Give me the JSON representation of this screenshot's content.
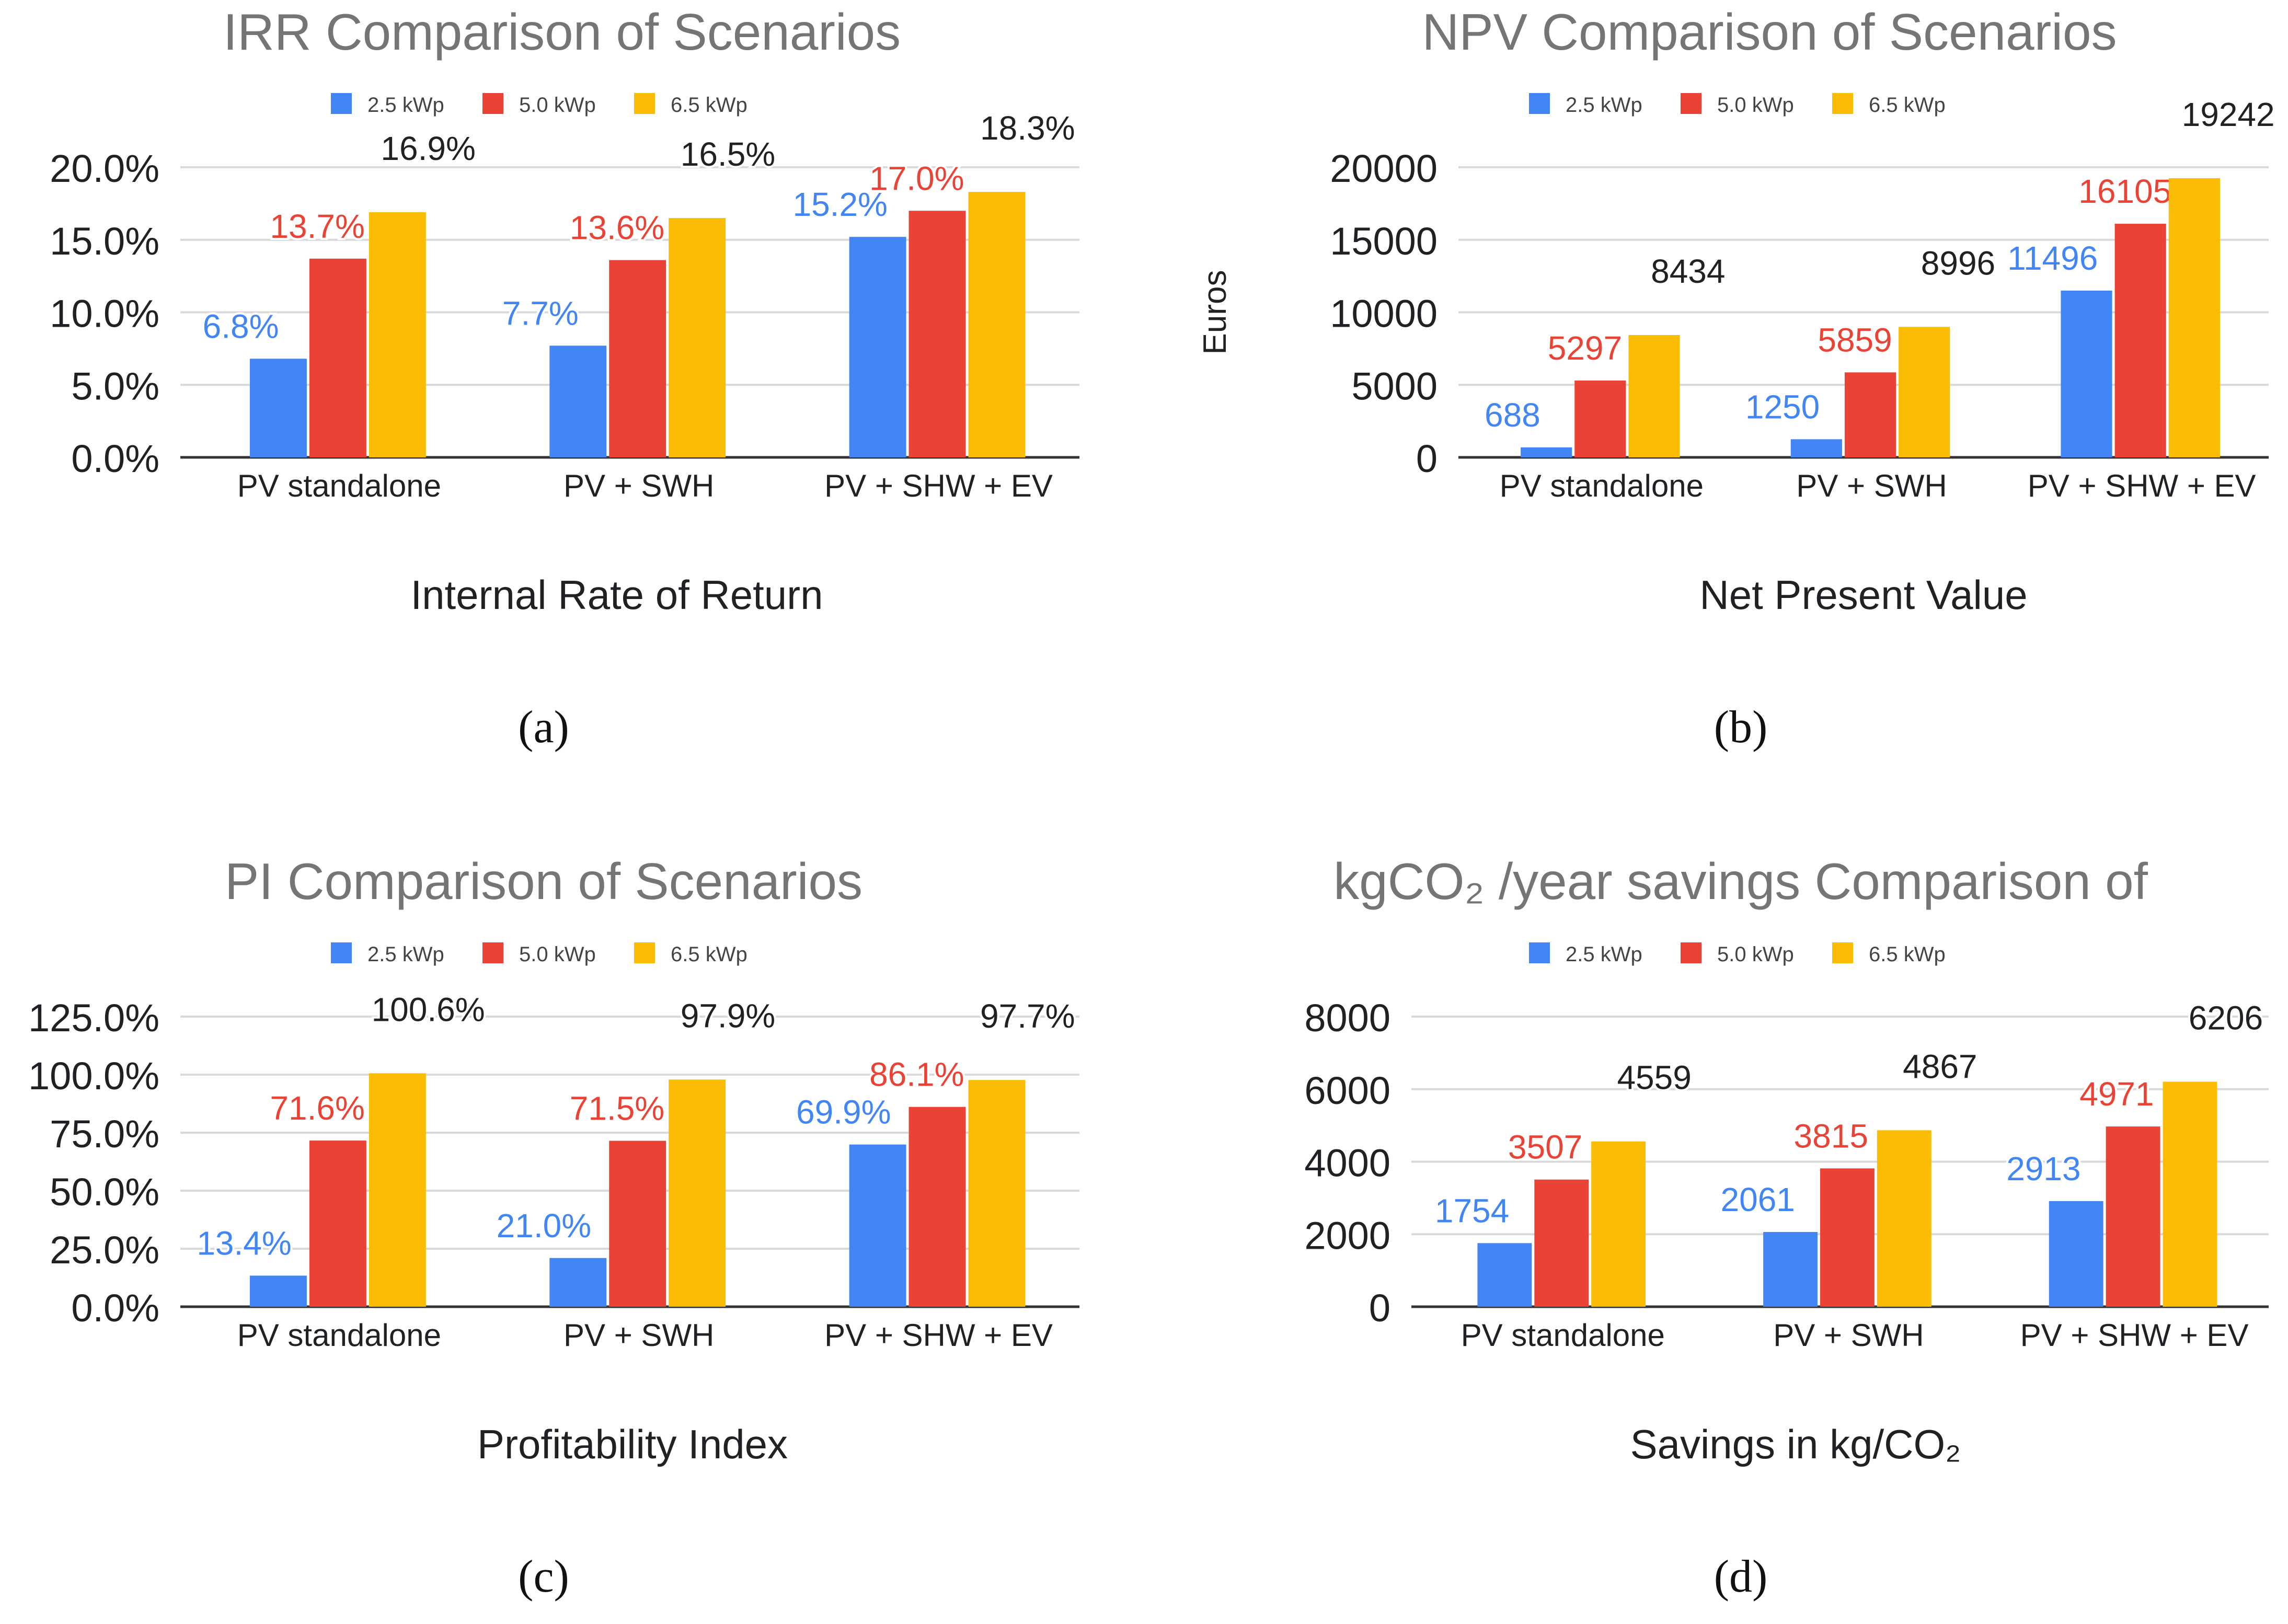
{
  "figure": {
    "panels": [
      "(a)",
      "(b)",
      "(c)",
      "(d)"
    ]
  },
  "colors": {
    "series": [
      "#4285F4",
      "#EA4335",
      "#FBBC04"
    ],
    "label": [
      "#4285F4",
      "#EA4335",
      "#202124"
    ],
    "title": "#757575",
    "grid": "#d9d9d9",
    "axis": "#333333",
    "text": "#202124"
  },
  "chart_data": [
    {
      "type": "bar",
      "title": "IRR Comparison of Scenarios",
      "xlabel": "Internal Rate of Return",
      "ylabel": "",
      "panel_label": "(a)",
      "categories": [
        "PV standalone",
        "PV + SWH",
        "PV + SHW + EV"
      ],
      "series": [
        {
          "name": "2.5 kWp",
          "values": [
            6.8,
            7.7,
            15.2
          ],
          "labels": [
            "6.8%",
            "7.7%",
            "15.2%"
          ]
        },
        {
          "name": "5.0 kWp",
          "values": [
            13.7,
            13.6,
            17.0
          ],
          "labels": [
            "13.7%",
            "13.6%",
            "17.0%"
          ]
        },
        {
          "name": "6.5 kWp",
          "values": [
            16.9,
            16.5,
            18.3
          ],
          "labels": [
            "16.9%",
            "16.5%",
            "18.3%"
          ]
        }
      ],
      "ylim": [
        0,
        20
      ],
      "yticks": [
        0,
        5,
        10,
        15,
        20
      ],
      "ytick_labels": [
        "0.0%",
        "5.0%",
        "10.0%",
        "15.0%",
        "20.0%"
      ],
      "grid": true,
      "legend": "top-center"
    },
    {
      "type": "bar",
      "title": "NPV Comparison of Scenarios",
      "xlabel": "Net Present Value",
      "ylabel": "Euros",
      "panel_label": "(b)",
      "categories": [
        "PV standalone",
        "PV + SWH",
        "PV + SHW + EV"
      ],
      "series": [
        {
          "name": "2.5 kWp",
          "values": [
            688,
            1250,
            11496
          ],
          "labels": [
            "688",
            "1250",
            "11496"
          ]
        },
        {
          "name": "5.0 kWp",
          "values": [
            5297,
            5859,
            16105
          ],
          "labels": [
            "5297",
            "5859",
            "16105"
          ]
        },
        {
          "name": "6.5 kWp",
          "values": [
            8434,
            8996,
            19242
          ],
          "labels": [
            "8434",
            "8996",
            "19242"
          ]
        }
      ],
      "ylim": [
        0,
        20000
      ],
      "yticks": [
        0,
        5000,
        10000,
        15000,
        20000
      ],
      "ytick_labels": [
        "0",
        "5000",
        "10000",
        "15000",
        "20000"
      ],
      "grid": true,
      "legend": "top-center"
    },
    {
      "type": "bar",
      "title": "PI Comparison of Scenarios",
      "xlabel": "Profitability Index",
      "ylabel": "",
      "panel_label": "(c)",
      "categories": [
        "PV standalone",
        "PV + SWH",
        "PV + SHW + EV"
      ],
      "series": [
        {
          "name": "2.5 kWp",
          "values": [
            13.4,
            21.0,
            69.9
          ],
          "labels": [
            "13.4%",
            "21.0%",
            "69.9%"
          ]
        },
        {
          "name": "5.0 kWp",
          "values": [
            71.6,
            71.5,
            86.1
          ],
          "labels": [
            "71.6%",
            "71.5%",
            "86.1%"
          ]
        },
        {
          "name": "6.5 kWp",
          "values": [
            100.6,
            97.9,
            97.7
          ],
          "labels": [
            "100.6%",
            "97.9%",
            "97.7%"
          ]
        }
      ],
      "ylim": [
        0,
        125
      ],
      "yticks": [
        0,
        25,
        50,
        75,
        100,
        125
      ],
      "ytick_labels": [
        "0.0%",
        "25.0%",
        "50.0%",
        "75.0%",
        "100.0%",
        "125.0%"
      ],
      "grid": true,
      "legend": "top-center"
    },
    {
      "type": "bar",
      "title": "kgCO₂ /year savings Comparison of",
      "xlabel": "Savings in kg/CO₂",
      "ylabel": "",
      "panel_label": "(d)",
      "categories": [
        "PV standalone",
        "PV + SWH",
        "PV + SHW + EV"
      ],
      "series": [
        {
          "name": "2.5 kWp",
          "values": [
            1754,
            2061,
            2913
          ],
          "labels": [
            "1754",
            "2061",
            "2913"
          ]
        },
        {
          "name": "5.0 kWp",
          "values": [
            3507,
            3815,
            4971
          ],
          "labels": [
            "3507",
            "3815",
            "4971"
          ]
        },
        {
          "name": "6.5 kWp",
          "values": [
            4559,
            4867,
            6206
          ],
          "labels": [
            "4559",
            "4867",
            "6206"
          ]
        }
      ],
      "ylim": [
        0,
        8000
      ],
      "yticks": [
        0,
        2000,
        4000,
        6000,
        8000
      ],
      "ytick_labels": [
        "0",
        "2000",
        "4000",
        "6000",
        "8000"
      ],
      "grid": true,
      "legend": "top-center"
    }
  ]
}
